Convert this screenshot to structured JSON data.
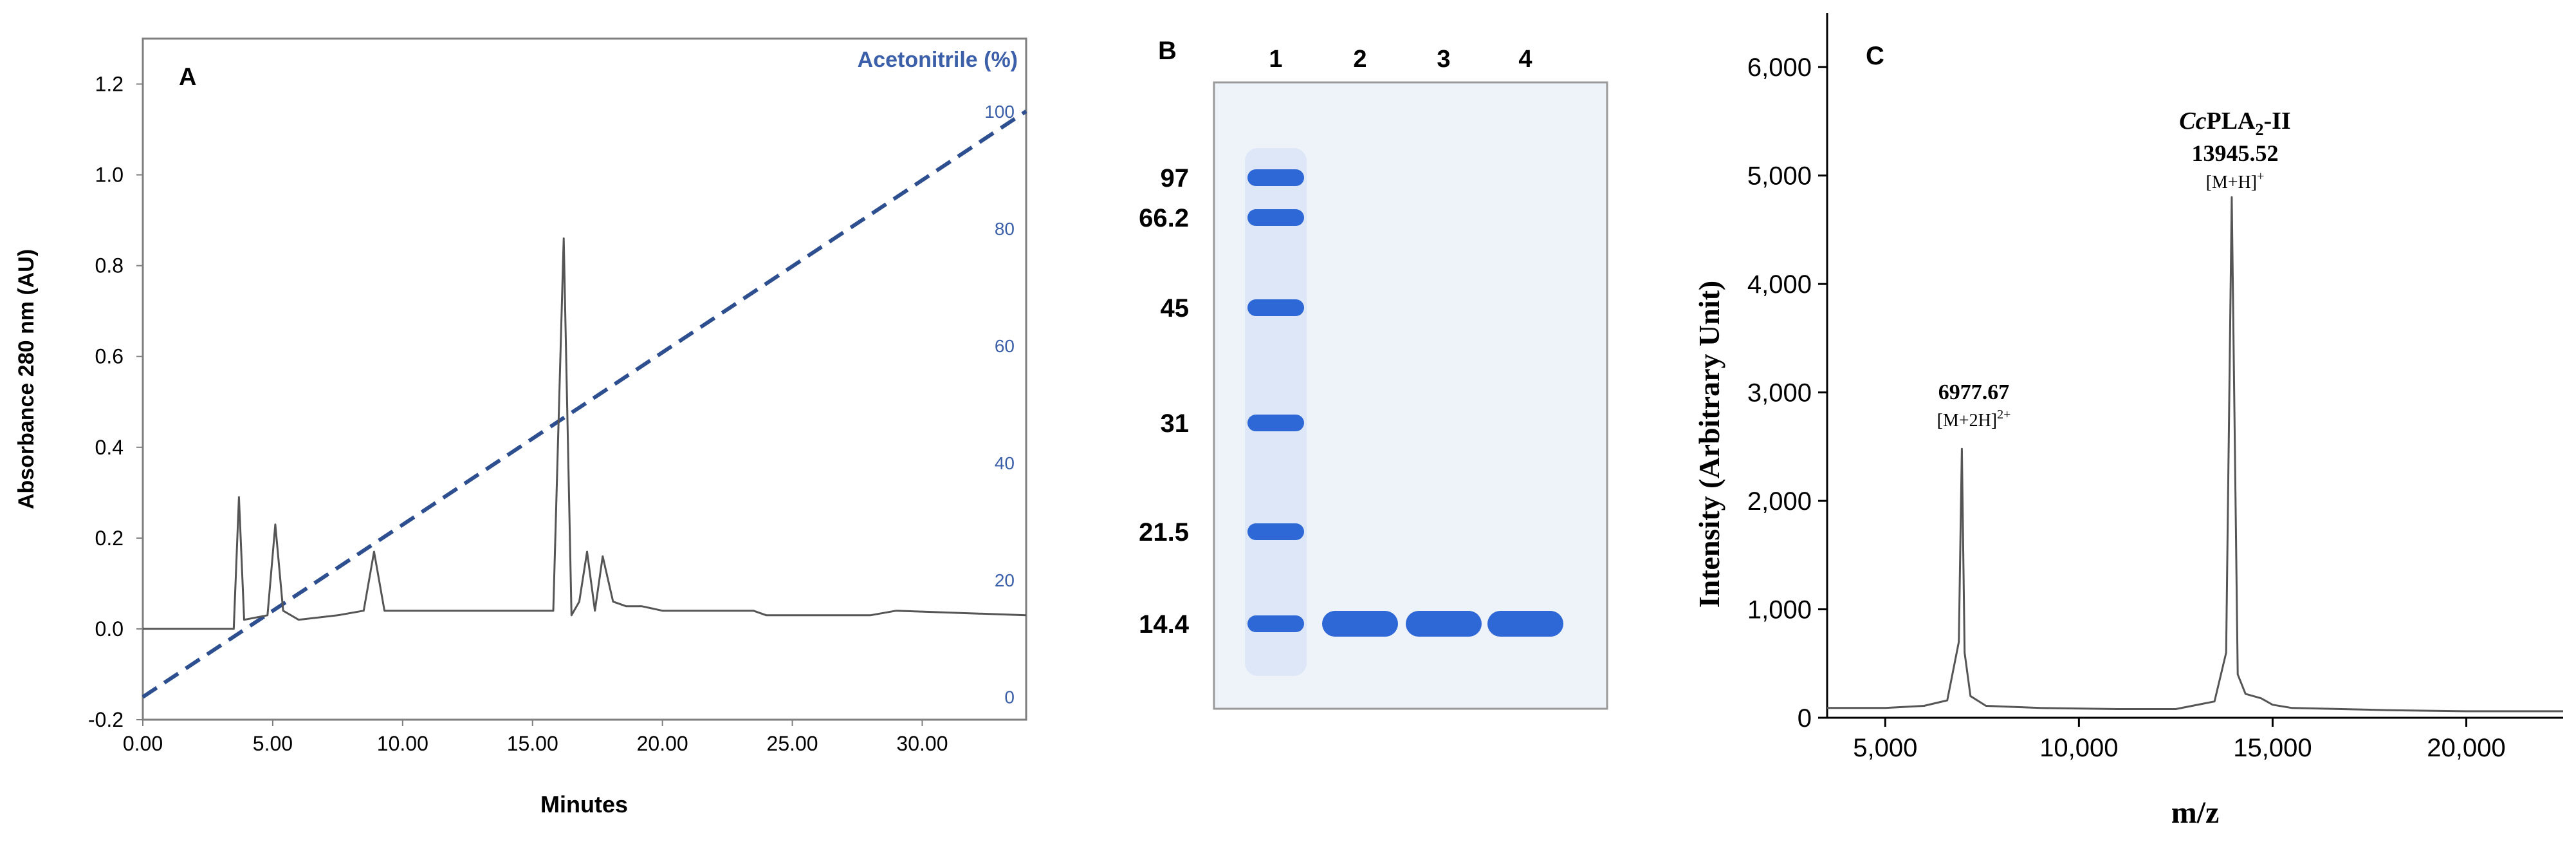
{
  "panels": {
    "a": {
      "letter": "A",
      "xlabel": "Minutes",
      "ylabel": "Absorbance 280 nm (AU)",
      "y2label": "Acetonitrile (%)",
      "xticks": [
        "0.00",
        "5.00",
        "10.00",
        "15.00",
        "20.00",
        "25.00",
        "30.00"
      ],
      "yticks": [
        "-0.2",
        "0.0",
        "0.2",
        "0.4",
        "0.6",
        "0.8",
        "1.0",
        "1.2"
      ],
      "y2ticks": [
        "0",
        "20",
        "40",
        "60",
        "80",
        "100"
      ],
      "colors": {
        "trace": "#555555",
        "gradient": "#2e4f8f",
        "right_axis": "#3b5fa8",
        "frame": "#7f7f7f"
      }
    },
    "b": {
      "letter": "B",
      "lanes": [
        "1",
        "2",
        "3",
        "4"
      ],
      "markers": [
        "97",
        "66.2",
        "45",
        "31",
        "21.5",
        "14.4"
      ],
      "colors": {
        "band": "#2d68d6",
        "gel": "#eef2f9"
      }
    },
    "c": {
      "letter": "C",
      "xlabel": "m/z",
      "ylabel": "Intensity (Arbitrary Unit)",
      "xticks": [
        "5,000",
        "10,000",
        "15,000",
        "20,000"
      ],
      "yticks": [
        "0",
        "1,000",
        "2,000",
        "3,000",
        "4,000",
        "5,000",
        "6,000"
      ],
      "peak1": {
        "value": "6977.67",
        "ion": "[M+2H]",
        "charge": "2+"
      },
      "peak2": {
        "name_italic": "Cc",
        "name_rest": "PLA",
        "name_sub": "2",
        "name_tail": "-II",
        "value": "13945.52",
        "ion": "[M+H]",
        "charge": "+"
      },
      "colors": {
        "trace": "#555555"
      }
    }
  },
  "chart_data": [
    {
      "type": "line",
      "title": "",
      "xlabel": "Minutes",
      "ylabel": "Absorbance 280 nm (AU)",
      "xlim": [
        0,
        34
      ],
      "ylim": [
        -0.2,
        1.3
      ],
      "grid": false,
      "series": [
        {
          "x": [
            0,
            3.5,
            3.7,
            3.9,
            4.8,
            5.1,
            5.4,
            6,
            7.5,
            8.5,
            8.9,
            9.3,
            10,
            15.8,
            16.2,
            16.5,
            16.8,
            17.1,
            17.4,
            17.7,
            18.1,
            18.6,
            19.2,
            20,
            23.5,
            24,
            28,
            29,
            34
          ],
          "y": [
            0.0,
            0.0,
            0.29,
            0.02,
            0.03,
            0.23,
            0.04,
            0.02,
            0.03,
            0.04,
            0.17,
            0.04,
            0.04,
            0.04,
            0.86,
            0.03,
            0.06,
            0.17,
            0.04,
            0.16,
            0.06,
            0.05,
            0.05,
            0.04,
            0.04,
            0.03,
            0.03,
            0.04,
            0.03
          ]
        },
        {
          "name": "Acetonitrile (%)",
          "axis": "right",
          "y2lim": [
            0,
            100
          ],
          "x": [
            0,
            34
          ],
          "y": [
            0,
            100
          ]
        }
      ]
    },
    {
      "type": "table",
      "title": "",
      "lanes": [
        "1",
        "2",
        "3",
        "4"
      ],
      "marker_kda": [
        97,
        66.2,
        45,
        31,
        21.5,
        14.4
      ],
      "bands": [
        {
          "lane": "1",
          "kda": [
            97,
            66.2,
            45,
            31,
            21.5,
            14.4
          ]
        },
        {
          "lane": "2",
          "kda": [
            14.4
          ]
        },
        {
          "lane": "3",
          "kda": [
            14.4
          ]
        },
        {
          "lane": "4",
          "kda": [
            14.4
          ]
        }
      ]
    },
    {
      "type": "line",
      "title": "",
      "xlabel": "m/z",
      "ylabel": "Intensity (Arbitrary Unit)",
      "xlim": [
        3500,
        22500
      ],
      "ylim": [
        0,
        6500
      ],
      "grid": false,
      "series": [
        {
          "x": [
            3500,
            5000,
            6000,
            6600,
            6900,
            6977.67,
            7050,
            7200,
            7600,
            9000,
            11000,
            12500,
            13500,
            13800,
            13945.52,
            14100,
            14300,
            14700,
            15000,
            15500,
            18000,
            20000,
            22500
          ],
          "y": [
            90,
            90,
            110,
            160,
            700,
            2480,
            600,
            200,
            110,
            90,
            80,
            80,
            150,
            600,
            4800,
            400,
            220,
            180,
            120,
            90,
            70,
            60,
            60
          ]
        }
      ],
      "annotations": [
        {
          "x": 6977.67,
          "text": "6977.67 [M+2H]2+"
        },
        {
          "x": 13945.52,
          "text": "CcPLA2-II 13945.52 [M+H]+"
        }
      ]
    }
  ]
}
